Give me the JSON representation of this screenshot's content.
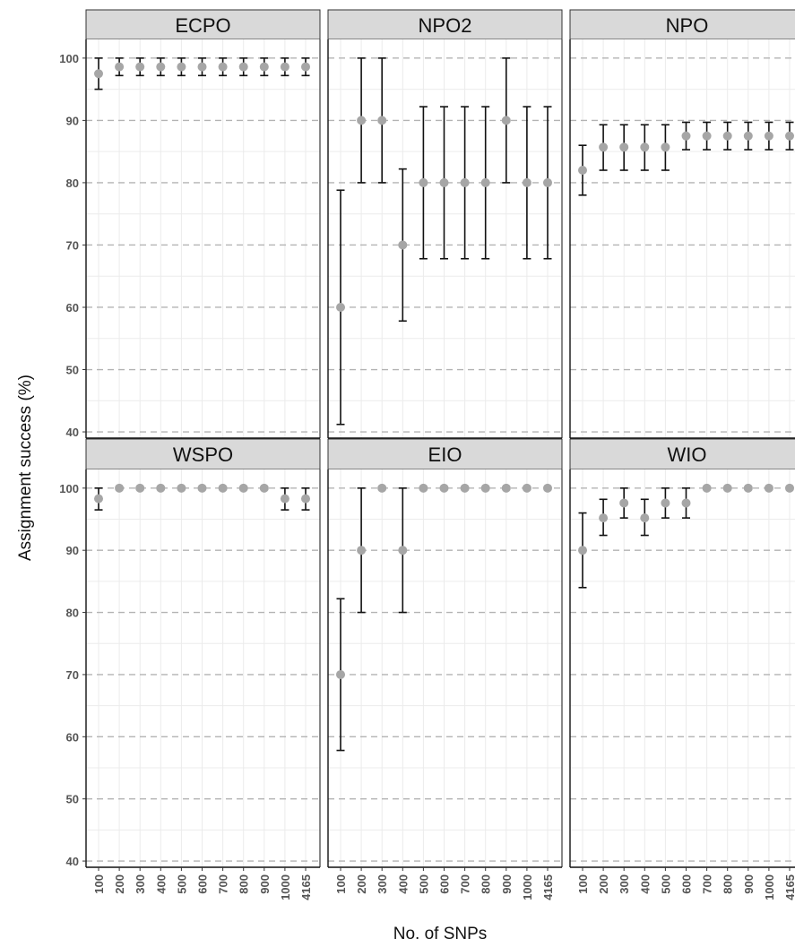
{
  "chart_data": {
    "type": "scatter",
    "xlabel": "No. of SNPs",
    "ylabel": "Assignment success (%)",
    "categories": [
      "100",
      "200",
      "300",
      "400",
      "500",
      "600",
      "700",
      "800",
      "900",
      "1000",
      "4165"
    ],
    "ylim": [
      39,
      103
    ],
    "yticks": [
      40,
      50,
      60,
      70,
      80,
      90,
      100
    ],
    "grid": true,
    "point_color": "#a6a6a6",
    "errorbar_color": "#111111",
    "panels": [
      {
        "title": "ECPO",
        "values": [
          97.5,
          98.6,
          98.6,
          98.6,
          98.6,
          98.6,
          98.6,
          98.6,
          98.6,
          98.6,
          98.6
        ],
        "lower": [
          95.0,
          97.2,
          97.2,
          97.2,
          97.2,
          97.2,
          97.2,
          97.2,
          97.2,
          97.2,
          97.2
        ],
        "upper": [
          100,
          100,
          100,
          100,
          100,
          100,
          100,
          100,
          100,
          100,
          100
        ]
      },
      {
        "title": "NPO2",
        "values": [
          60,
          90,
          90,
          70,
          80,
          80,
          80,
          80,
          90,
          80,
          80
        ],
        "lower": [
          41.2,
          80,
          80,
          57.8,
          67.8,
          67.8,
          67.8,
          67.8,
          80,
          67.8,
          67.8
        ],
        "upper": [
          78.8,
          100,
          100,
          82.2,
          92.2,
          92.2,
          92.2,
          92.2,
          100,
          92.2,
          92.2
        ]
      },
      {
        "title": "NPO",
        "values": [
          82,
          85.7,
          85.7,
          85.7,
          85.7,
          87.5,
          87.5,
          87.5,
          87.5,
          87.5,
          87.5
        ],
        "lower": [
          78,
          82,
          82,
          82,
          82,
          85.3,
          85.3,
          85.3,
          85.3,
          85.3,
          85.3
        ],
        "upper": [
          86,
          89.3,
          89.3,
          89.3,
          89.3,
          89.7,
          89.7,
          89.7,
          89.7,
          89.7,
          89.7
        ]
      },
      {
        "title": "WSPO",
        "values": [
          98.3,
          100,
          100,
          100,
          100,
          100,
          100,
          100,
          100,
          98.3,
          98.3
        ],
        "lower": [
          96.5,
          100,
          100,
          100,
          100,
          100,
          100,
          100,
          100,
          96.5,
          96.5
        ],
        "upper": [
          100,
          100,
          100,
          100,
          100,
          100,
          100,
          100,
          100,
          100,
          100
        ]
      },
      {
        "title": "EIO",
        "values": [
          70,
          90,
          100,
          90,
          100,
          100,
          100,
          100,
          100,
          100,
          100
        ],
        "lower": [
          57.8,
          80,
          100,
          80,
          100,
          100,
          100,
          100,
          100,
          100,
          100
        ],
        "upper": [
          82.2,
          100,
          100,
          100,
          100,
          100,
          100,
          100,
          100,
          100,
          100
        ]
      },
      {
        "title": "WIO",
        "values": [
          90,
          95.2,
          97.6,
          95.2,
          97.6,
          97.6,
          100,
          100,
          100,
          100,
          100
        ],
        "lower": [
          84,
          92.4,
          95.2,
          92.4,
          95.2,
          95.2,
          100,
          100,
          100,
          100,
          100
        ],
        "upper": [
          96,
          98.2,
          100,
          98.2,
          100,
          100,
          100,
          100,
          100,
          100,
          100
        ]
      }
    ]
  }
}
